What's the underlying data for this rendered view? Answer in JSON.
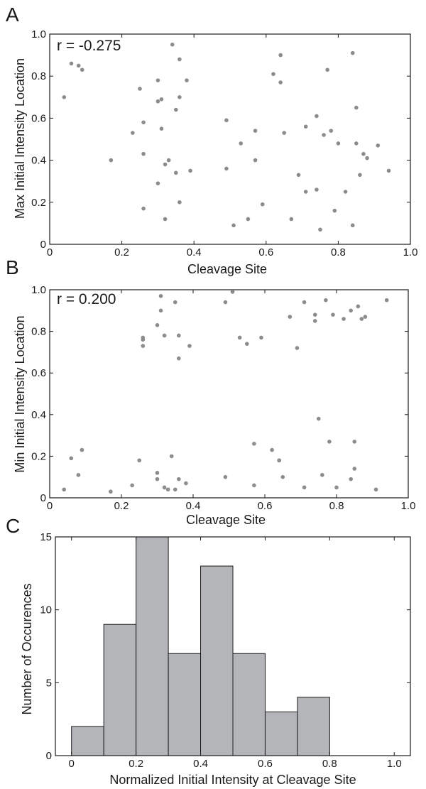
{
  "chart_data": [
    {
      "panel": "A",
      "type": "scatter",
      "annotation": "r = -0.275",
      "xlabel": "Cleavage Site",
      "ylabel": "Max Initial Intensity Location",
      "xlim": [
        0,
        1
      ],
      "ylim": [
        0,
        1
      ],
      "xticks": [
        "0",
        "0.2",
        "0.4",
        "0.6",
        "0.8",
        "1.0"
      ],
      "yticks": [
        "0",
        "0.2",
        "0.4",
        "0.6",
        "0.8",
        "1.0"
      ],
      "point_color": "#8c8c8c",
      "x": [
        0.04,
        0.06,
        0.08,
        0.09,
        0.17,
        0.23,
        0.25,
        0.26,
        0.26,
        0.26,
        0.3,
        0.3,
        0.3,
        0.31,
        0.31,
        0.32,
        0.32,
        0.33,
        0.34,
        0.35,
        0.35,
        0.36,
        0.36,
        0.36,
        0.38,
        0.39,
        0.49,
        0.49,
        0.51,
        0.53,
        0.55,
        0.57,
        0.57,
        0.59,
        0.62,
        0.64,
        0.64,
        0.65,
        0.67,
        0.69,
        0.71,
        0.71,
        0.74,
        0.74,
        0.75,
        0.76,
        0.77,
        0.78,
        0.79,
        0.8,
        0.82,
        0.84,
        0.84,
        0.85,
        0.85,
        0.86,
        0.87,
        0.88,
        0.91,
        0.94
      ],
      "y": [
        0.7,
        0.86,
        0.85,
        0.83,
        0.4,
        0.53,
        0.74,
        0.58,
        0.43,
        0.17,
        0.78,
        0.68,
        0.29,
        0.55,
        0.69,
        0.38,
        0.12,
        0.4,
        0.95,
        0.64,
        0.34,
        0.7,
        0.88,
        0.2,
        0.78,
        0.35,
        0.59,
        0.36,
        0.09,
        0.48,
        0.12,
        0.54,
        0.4,
        0.19,
        0.81,
        0.9,
        0.77,
        0.53,
        0.12,
        0.33,
        0.56,
        0.25,
        0.61,
        0.26,
        0.07,
        0.52,
        0.83,
        0.54,
        0.16,
        0.48,
        0.25,
        0.91,
        0.09,
        0.65,
        0.48,
        0.33,
        0.43,
        0.41,
        0.47,
        0.35
      ]
    },
    {
      "panel": "B",
      "type": "scatter",
      "annotation": "r = 0.200",
      "xlabel": "Cleavage Site",
      "ylabel": "Min Initial Intensity Location",
      "xlim": [
        0,
        1
      ],
      "ylim": [
        0,
        1
      ],
      "xticks": [
        "0",
        "0.2",
        "0.4",
        "0.6",
        "0.8",
        "1.0"
      ],
      "yticks": [
        "0",
        "0.2",
        "0.4",
        "0.6",
        "0.8",
        "1.0"
      ],
      "point_color": "#8c8c8c",
      "x": [
        0.04,
        0.06,
        0.08,
        0.09,
        0.17,
        0.23,
        0.25,
        0.26,
        0.26,
        0.26,
        0.3,
        0.3,
        0.3,
        0.31,
        0.31,
        0.32,
        0.32,
        0.33,
        0.34,
        0.35,
        0.35,
        0.36,
        0.36,
        0.36,
        0.38,
        0.39,
        0.49,
        0.49,
        0.51,
        0.53,
        0.55,
        0.57,
        0.57,
        0.59,
        0.62,
        0.64,
        0.64,
        0.65,
        0.67,
        0.69,
        0.71,
        0.71,
        0.74,
        0.74,
        0.75,
        0.76,
        0.77,
        0.78,
        0.79,
        0.8,
        0.82,
        0.84,
        0.84,
        0.85,
        0.85,
        0.86,
        0.87,
        0.88,
        0.91,
        0.94
      ],
      "y": [
        0.04,
        0.19,
        0.11,
        0.23,
        0.03,
        0.06,
        0.18,
        0.77,
        0.73,
        0.76,
        0.83,
        0.09,
        0.12,
        0.9,
        0.97,
        0.78,
        0.05,
        0.04,
        0.2,
        0.94,
        0.04,
        0.67,
        0.78,
        0.09,
        0.07,
        0.73,
        0.94,
        0.1,
        0.99,
        0.77,
        0.74,
        0.26,
        0.06,
        0.77,
        0.23,
        0.18,
        0.18,
        0.1,
        0.87,
        0.72,
        0.94,
        0.05,
        0.88,
        0.85,
        0.38,
        0.11,
        0.95,
        0.27,
        0.88,
        0.05,
        0.86,
        0.9,
        0.09,
        0.27,
        0.14,
        0.92,
        0.86,
        0.87,
        0.04,
        0.95
      ]
    },
    {
      "panel": "C",
      "type": "bar",
      "subtype": "histogram",
      "xlabel": "Normalized Initial Intensity at Cleavage Site",
      "ylabel": "Number of Occurences",
      "xlim": [
        -0.05,
        1.05
      ],
      "ylim": [
        0,
        15
      ],
      "xticks": [
        "0",
        "0.2",
        "0.4",
        "0.6",
        "0.8",
        "1.0"
      ],
      "yticks": [
        "0",
        "5",
        "10",
        "15"
      ],
      "bar_color": "#b4b5b9",
      "bin_edges": [
        0,
        0.1,
        0.2,
        0.3,
        0.4,
        0.5,
        0.6,
        0.7,
        0.8
      ],
      "values": [
        2,
        9,
        15,
        7,
        13,
        7,
        3,
        4
      ]
    }
  ]
}
